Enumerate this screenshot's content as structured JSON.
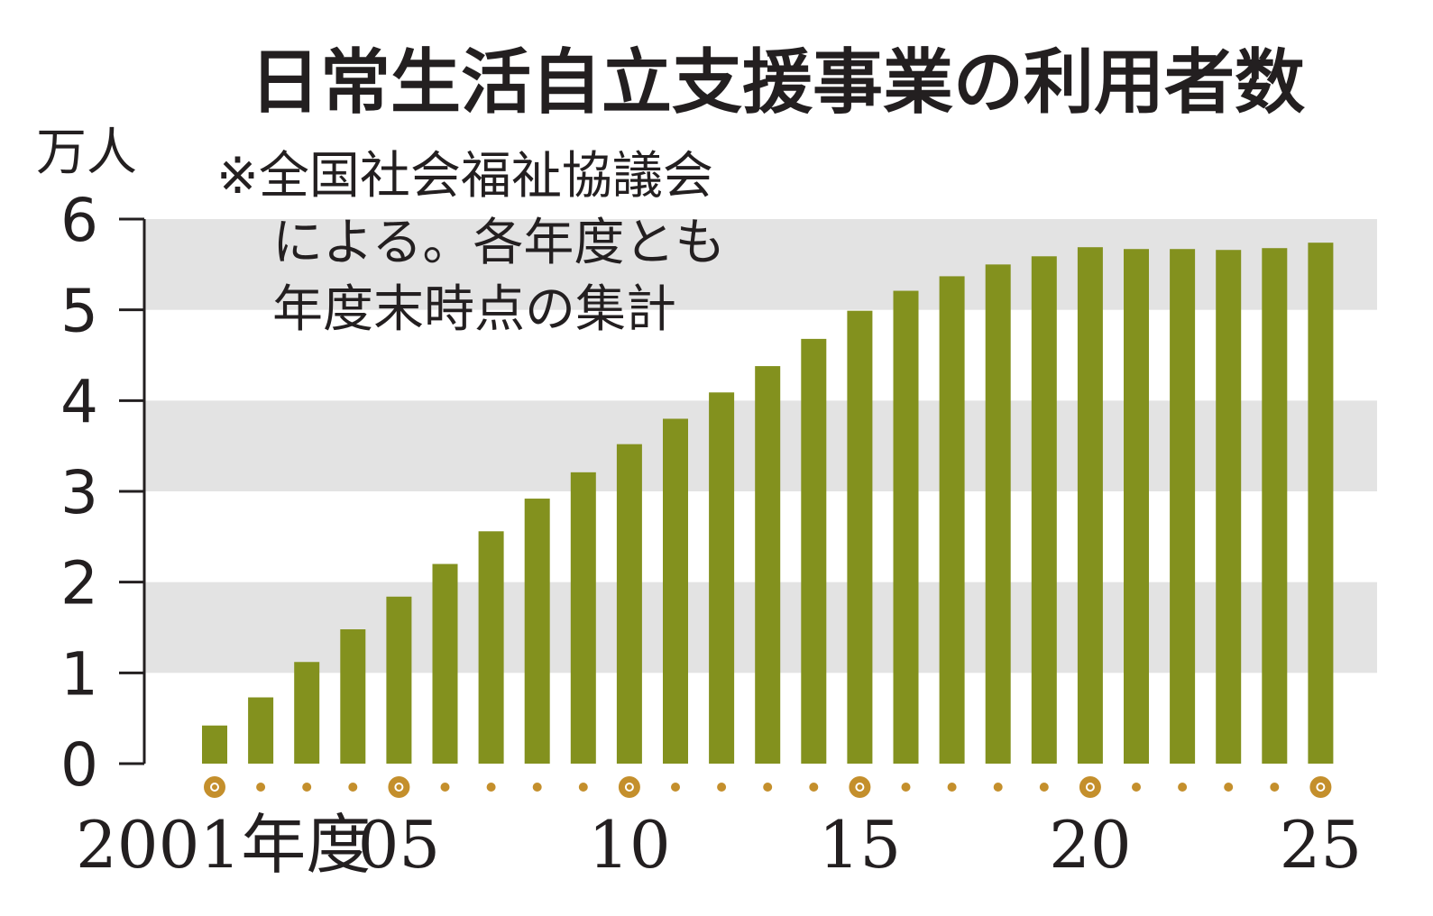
{
  "chart_data": {
    "type": "bar",
    "title": "日常生活自立支援事業の利用者数",
    "unit_label": "万人",
    "note_lines": [
      "※全国社会福祉協議会",
      "による。各年度とも",
      "年度末時点の集計"
    ],
    "ylim": [
      0,
      6
    ],
    "yticks": [
      0,
      1,
      2,
      3,
      4,
      5,
      6
    ],
    "categories": [
      "2001",
      "2002",
      "2003",
      "2004",
      "2005",
      "2006",
      "2007",
      "2008",
      "2009",
      "2010",
      "2011",
      "2012",
      "2013",
      "2014",
      "2015",
      "2016",
      "2017",
      "2018",
      "2019",
      "2020",
      "2021",
      "2022",
      "2023",
      "2024",
      "2025"
    ],
    "values": [
      0.42,
      0.73,
      1.12,
      1.48,
      1.84,
      2.2,
      2.56,
      2.92,
      3.21,
      3.52,
      3.8,
      4.09,
      4.38,
      4.68,
      4.99,
      5.21,
      5.37,
      5.5,
      5.59,
      5.69,
      5.67,
      5.67,
      5.66,
      5.68,
      5.74
    ],
    "xtick_labels": [
      {
        "index": 0,
        "text": "2001年度"
      },
      {
        "index": 4,
        "text": "05"
      },
      {
        "index": 9,
        "text": "10"
      },
      {
        "index": 14,
        "text": "15"
      },
      {
        "index": 19,
        "text": "20"
      },
      {
        "index": 24,
        "text": "25"
      }
    ],
    "grid_bands": true,
    "colors": {
      "bar": "#83911e",
      "band": "#e3e3e3",
      "marker": "#c48f2c",
      "axis": "#231f20"
    }
  }
}
